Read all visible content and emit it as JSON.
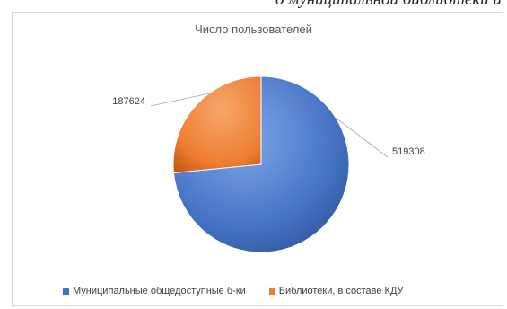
{
  "top_caption": "о муниципальной библиотеки и",
  "chart_data": {
    "type": "pie",
    "title": "Число пользователей",
    "categories": [
      "Муниципальные общедоступные б-ки",
      "Библиотеки, в составе КДУ"
    ],
    "values": [
      519308,
      187624
    ],
    "data_labels": [
      "519308",
      "187624"
    ],
    "colors": [
      "#4472C4",
      "#ED7D31"
    ],
    "legend_position": "bottom",
    "style": "3d-shaded"
  }
}
